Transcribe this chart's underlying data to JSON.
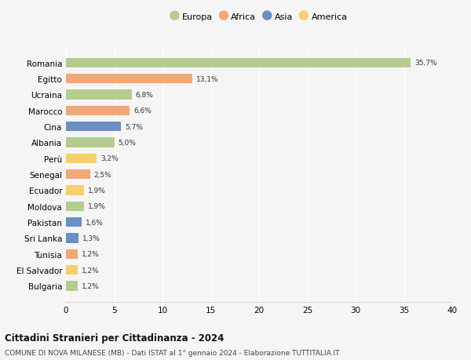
{
  "categories": [
    "Romania",
    "Egitto",
    "Ucraina",
    "Marocco",
    "Cina",
    "Albania",
    "Perù",
    "Senegal",
    "Ecuador",
    "Moldova",
    "Pakistan",
    "Sri Lanka",
    "Tunisia",
    "El Salvador",
    "Bulgaria"
  ],
  "values": [
    35.7,
    13.1,
    6.8,
    6.6,
    5.7,
    5.0,
    3.2,
    2.5,
    1.9,
    1.9,
    1.6,
    1.3,
    1.2,
    1.2,
    1.2
  ],
  "labels": [
    "35,7%",
    "13,1%",
    "6,8%",
    "6,6%",
    "5,7%",
    "5,0%",
    "3,2%",
    "2,5%",
    "1,9%",
    "1,9%",
    "1,6%",
    "1,3%",
    "1,2%",
    "1,2%",
    "1,2%"
  ],
  "continents": [
    "Europa",
    "Africa",
    "Europa",
    "Africa",
    "Asia",
    "Europa",
    "America",
    "Africa",
    "America",
    "Europa",
    "Asia",
    "Asia",
    "Africa",
    "America",
    "Europa"
  ],
  "continent_colors": {
    "Europa": "#b5cc8e",
    "Africa": "#f0a875",
    "Asia": "#6b8ec4",
    "America": "#f5d06e"
  },
  "legend_order": [
    "Europa",
    "Africa",
    "Asia",
    "America"
  ],
  "xlim": [
    0,
    40
  ],
  "xticks": [
    0,
    5,
    10,
    15,
    20,
    25,
    30,
    35,
    40
  ],
  "title": "Cittadini Stranieri per Cittadinanza - 2024",
  "subtitle": "COMUNE DI NOVA MILANESE (MB) - Dati ISTAT al 1° gennaio 2024 - Elaborazione TUTTITALIA.IT",
  "background_color": "#f5f5f5",
  "grid_color": "#ffffff",
  "bar_height": 0.6
}
